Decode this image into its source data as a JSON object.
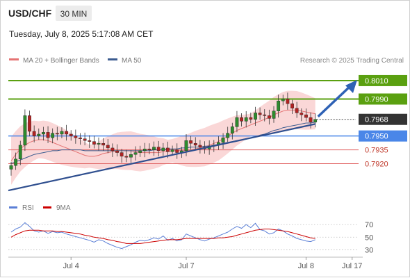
{
  "header": {
    "symbol": "USD/CHF",
    "timeframe": "30 MIN",
    "datetime": "Tuesday, July 8, 2025 5:17:08 AM CET"
  },
  "legend": {
    "ma20": "MA 20 + Bollinger Bands",
    "ma50": "MA 50",
    "credit": "Research © 2025 Trading Central"
  },
  "colors": {
    "up": "#2e8b2e",
    "down": "#b22222",
    "ma20": "#e57373",
    "band": "#f8c9c9",
    "ma50": "#3b5b8f",
    "trend": "#2f4f8f",
    "arrow": "#2f62b5",
    "resistance": "#5aa010",
    "pivot": "#4a86e8",
    "support": "#e06060",
    "last": "#333333",
    "rsi": "#5b7fd6",
    "rsi_ma": "#cc0000"
  },
  "price_levels": [
    {
      "label": "0.8010",
      "value": 0.801,
      "kind": "resistance"
    },
    {
      "label": "0.7990",
      "value": 0.799,
      "kind": "resistance"
    },
    {
      "label": "0.7968",
      "value": 0.7968,
      "kind": "last"
    },
    {
      "label": "0.7950",
      "value": 0.795,
      "kind": "pivot"
    },
    {
      "label": "0.7935",
      "value": 0.7935,
      "kind": "support"
    },
    {
      "label": "0.7920",
      "value": 0.792,
      "kind": "support"
    }
  ],
  "rsi_panel": {
    "rsi_label": "RSI",
    "ma_label": "9MA",
    "ticks": [
      {
        "label": "70",
        "value": 70
      },
      {
        "label": "50",
        "value": 50
      },
      {
        "label": "30",
        "value": 30
      }
    ]
  },
  "chart_data": {
    "type": "line",
    "ylim": [
      0.7888,
      0.8022
    ],
    "x_ticks": [
      {
        "label": "Jul 4",
        "x": 13
      },
      {
        "label": "Jul 7",
        "x": 38
      },
      {
        "label": "Jul 8",
        "x": 64
      },
      {
        "label": "Jul 17",
        "x": 74
      }
    ],
    "x_max": 76,
    "series": [
      {
        "name": "MA 20 + Bollinger Bands",
        "values": [
          0.7923,
          0.793,
          0.7936,
          0.794,
          0.7943,
          0.7945,
          0.7946,
          0.7946,
          0.7945,
          0.7943,
          0.7941,
          0.7939,
          0.7937,
          0.7935,
          0.7933,
          0.7931,
          0.7929,
          0.7928,
          0.7928,
          0.7929,
          0.7931,
          0.7932,
          0.7933,
          0.7934,
          0.7934,
          0.7934,
          0.7934,
          0.7933,
          0.7932,
          0.7932,
          0.7932,
          0.7932,
          0.7932,
          0.7933,
          0.7933,
          0.7934,
          0.7934,
          0.7934,
          0.7934,
          0.7935,
          0.7936,
          0.7937,
          0.7938,
          0.794,
          0.7942,
          0.7944,
          0.7947,
          0.795,
          0.7953,
          0.7956,
          0.7958,
          0.796,
          0.7962,
          0.7964,
          0.7966,
          0.7968,
          0.797,
          0.7973,
          0.7975,
          0.7977,
          0.7978,
          0.7978,
          0.7978,
          0.7977,
          0.7976,
          0.7975,
          0.7974
        ]
      },
      {
        "name": "MA 50",
        "values": [
          0.792,
          0.7922,
          0.7924,
          0.7926,
          0.7928,
          0.793,
          0.7931,
          0.7932,
          0.7933,
          0.7934,
          0.7934,
          0.7935,
          0.7935,
          0.7935,
          0.7935,
          0.7935,
          0.7934,
          0.7934,
          0.7934,
          0.7934,
          0.7934,
          0.7934,
          0.7934,
          0.7934,
          0.7934,
          0.7934,
          0.7934,
          0.7934,
          0.7934,
          0.7934,
          0.7934,
          0.7935,
          0.7935,
          0.7935,
          0.7936,
          0.7936,
          0.7936,
          0.7937,
          0.7937,
          0.7938,
          0.7938,
          0.7938,
          0.7939,
          0.7939,
          0.794,
          0.7941,
          0.7942,
          0.7943,
          0.7944,
          0.7945,
          0.7946,
          0.7947,
          0.7948,
          0.7949,
          0.7951,
          0.7952,
          0.7954,
          0.7956,
          0.7957,
          0.7959,
          0.796,
          0.7961,
          0.7962,
          0.7963,
          0.7964,
          0.7964,
          0.7965
        ]
      }
    ],
    "candles_close": [
      0.7918,
      0.7925,
      0.794,
      0.7972,
      0.7955,
      0.795,
      0.7952,
      0.7954,
      0.7948,
      0.7953,
      0.7952,
      0.7955,
      0.7952,
      0.795,
      0.7948,
      0.7947,
      0.7945,
      0.7944,
      0.7941,
      0.7942,
      0.794,
      0.7937,
      0.7934,
      0.7932,
      0.7928,
      0.7927,
      0.793,
      0.7932,
      0.7934,
      0.7936,
      0.7935,
      0.7938,
      0.7934,
      0.7937,
      0.7933,
      0.7935,
      0.7932,
      0.7934,
      0.7945,
      0.7942,
      0.794,
      0.7938,
      0.7936,
      0.7939,
      0.794,
      0.7943,
      0.7948,
      0.7953,
      0.796,
      0.797,
      0.7966,
      0.797,
      0.7968,
      0.7975,
      0.7973,
      0.7972,
      0.7969,
      0.7977,
      0.7988,
      0.799,
      0.7985,
      0.798,
      0.7975,
      0.7973,
      0.797,
      0.7965,
      0.7968
    ],
    "rsi": {
      "ylim": [
        25,
        80
      ],
      "rsi_values": [
        58,
        63,
        66,
        73,
        67,
        60,
        58,
        60,
        56,
        59,
        57,
        58,
        55,
        53,
        51,
        49,
        47,
        45,
        42,
        46,
        44,
        40,
        37,
        34,
        32,
        35,
        38,
        42,
        45,
        44,
        46,
        49,
        47,
        52,
        45,
        48,
        44,
        46,
        55,
        52,
        49,
        46,
        44,
        47,
        49,
        52,
        55,
        58,
        63,
        67,
        64,
        70,
        65,
        72,
        62,
        60,
        55,
        57,
        63,
        60,
        55,
        52,
        48,
        46,
        44,
        43,
        46
      ],
      "ma_values": [
        50,
        54,
        57,
        60,
        61,
        61,
        61,
        60,
        60,
        60,
        59,
        59,
        58,
        57,
        56,
        55,
        53,
        52,
        50,
        49,
        48,
        46,
        45,
        43,
        42,
        40,
        40,
        40,
        40,
        41,
        42,
        43,
        44,
        45,
        46,
        46,
        46,
        47,
        48,
        48,
        48,
        48,
        48,
        48,
        48,
        49,
        49,
        50,
        51,
        53,
        55,
        57,
        59,
        61,
        62,
        63,
        63,
        62,
        61,
        60,
        59,
        57,
        55,
        53,
        51,
        49,
        48
      ]
    }
  }
}
